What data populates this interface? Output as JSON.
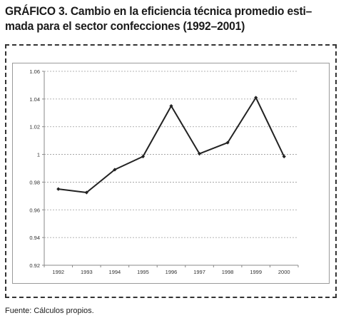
{
  "figure": {
    "title_line1": "GRÁFICO 3. Cambio en la eficiencia técnica promedio esti–",
    "title_line2": "mada para el sector confecciones (1992–2001)",
    "source": "Fuente: Cálculos propios."
  },
  "chart_data": {
    "type": "line",
    "title": "",
    "xlabel": "",
    "ylabel": "",
    "categories": [
      "1992",
      "1993",
      "1994",
      "1995",
      "1996",
      "1997",
      "1998",
      "1999",
      "2000"
    ],
    "series": [
      {
        "values": [
          0.975,
          0.9725,
          0.989,
          0.9985,
          1.035,
          1.0005,
          1.0085,
          1.041,
          0.9985
        ]
      }
    ],
    "ylim": [
      0.92,
      1.06
    ],
    "yticks": [
      0.92,
      0.94,
      0.96,
      0.98,
      1,
      1.02,
      1.04,
      1.06
    ],
    "ytick_labels": [
      "0.92",
      "0.94",
      "0.96",
      "0.98",
      "1",
      "1.02",
      "1.04",
      "1.06"
    ],
    "grid": "horizontal dashed",
    "legend": "none",
    "colors": {
      "line": "#222222",
      "grid": "#9a9a9a",
      "axis": "#888888"
    }
  }
}
